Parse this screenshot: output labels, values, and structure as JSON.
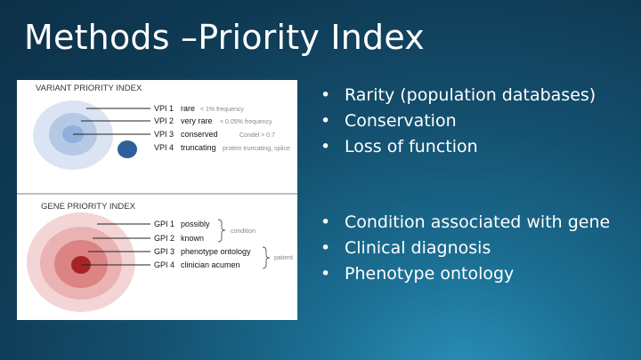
{
  "slide": {
    "title": "Methods –Priority Index"
  },
  "colors": {
    "vpi_outer": "#dbe4f2",
    "vpi_mid": "#b5c9e6",
    "vpi_inner": "#8fb0da",
    "vpi_dot": "#2e5f9a",
    "gpi_outer": "#f4d5d5",
    "gpi_mid": "#eab2b2",
    "gpi_inner": "#dc8484",
    "gpi_dot": "#a72424"
  },
  "variant_panel": {
    "header": "VARIANT  PRIORITY  INDEX",
    "rows": [
      {
        "code": "VPI 1",
        "label": "rare",
        "note": "< 1% frequency"
      },
      {
        "code": "VPI 2",
        "label": "very rare",
        "note": "< 0.05% frequency"
      },
      {
        "code": "VPI 3",
        "label": "conserved",
        "note": "Condel > 0.7"
      },
      {
        "code": "VPI 4",
        "label": "truncating",
        "note": "protein truncating, splice"
      }
    ]
  },
  "gene_panel": {
    "header": "GENE  PRIORITY  INDEX",
    "rows": [
      {
        "code": "GPI 1",
        "label": "possibly"
      },
      {
        "code": "GPI 2",
        "label": "known"
      },
      {
        "code": "GPI 3",
        "label": "phenotype ontology"
      },
      {
        "code": "GPI 4",
        "label": "clinician acumen"
      }
    ],
    "bracket_condition": "condition",
    "bracket_patient": "patient"
  },
  "bullets_top": [
    "Rarity (population databases)",
    "Conservation",
    "Loss of function"
  ],
  "bullets_bottom": [
    "Condition associated with gene",
    "Clinical diagnosis",
    "Phenotype ontology"
  ],
  "bullet_glyph": "•"
}
